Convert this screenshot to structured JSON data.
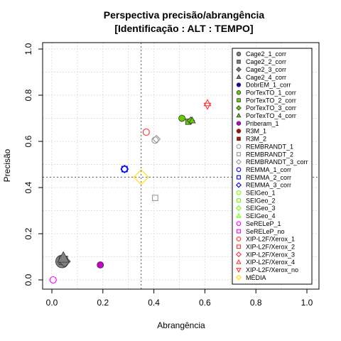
{
  "chart_data": {
    "type": "scatter",
    "title_line1": "Perspectiva precisão/abrangência",
    "title_line2": "[Identificação : ALT : TEMPO]",
    "xlabel": "Abrangência",
    "ylabel": "Precisão",
    "xlim": [
      0,
      1
    ],
    "ylim": [
      0,
      1
    ],
    "xticks": [
      "0.0",
      "0.2",
      "0.4",
      "0.6",
      "0.8",
      "1.0"
    ],
    "yticks": [
      "0.0",
      "0.2",
      "0.4",
      "0.6",
      "0.8",
      "1.0"
    ],
    "grid": true,
    "legend_position": "top-right",
    "reference_lines": {
      "x": 0.35,
      "y": 0.445
    },
    "series": [
      {
        "name": "Cage2_1_corr",
        "color": "#808080",
        "shape": "circle",
        "filled": true,
        "points": [
          [
            0.04,
            0.08
          ]
        ]
      },
      {
        "name": "Cage2_2_corr",
        "color": "#808080",
        "shape": "square",
        "filled": true,
        "points": [
          [
            0.045,
            0.085
          ]
        ]
      },
      {
        "name": "Cage2_3_corr",
        "color": "#808080",
        "shape": "diamond",
        "filled": true,
        "points": [
          [
            0.05,
            0.08
          ]
        ]
      },
      {
        "name": "Cage2_4_corr",
        "color": "#808080",
        "shape": "triangle",
        "filled": true,
        "points": [
          [
            0.045,
            0.095
          ]
        ]
      },
      {
        "name": "DobrEM_1_corr",
        "color": "#0000cc",
        "shape": "circle",
        "filled": true,
        "points": []
      },
      {
        "name": "PorTexTO_1_corr",
        "color": "#66cc00",
        "shape": "circle",
        "filled": true,
        "points": [
          [
            0.51,
            0.7
          ]
        ]
      },
      {
        "name": "PorTexTO_2_corr",
        "color": "#66cc00",
        "shape": "square",
        "filled": true,
        "points": [
          [
            0.535,
            0.685
          ]
        ]
      },
      {
        "name": "PorTexTO_3_corr",
        "color": "#66cc00",
        "shape": "diamond",
        "filled": true,
        "points": [
          [
            0.545,
            0.69
          ]
        ]
      },
      {
        "name": "PorTexTO_4_corr",
        "color": "#66cc00",
        "shape": "triangle",
        "filled": true,
        "points": [
          [
            0.55,
            0.69
          ]
        ]
      },
      {
        "name": "Priberam_1",
        "color": "#cc00cc",
        "shape": "circle",
        "filled": true,
        "points": [
          [
            0.19,
            0.065
          ]
        ]
      },
      {
        "name": "R3M_1",
        "color": "#cc0000",
        "shape": "circle",
        "filled": true,
        "points": []
      },
      {
        "name": "R3M_2",
        "color": "#cc0000",
        "shape": "square",
        "filled": true,
        "points": []
      },
      {
        "name": "REMBRANDT_1",
        "color": "#999999",
        "shape": "circle",
        "filled": false,
        "points": [
          [
            0.405,
            0.605
          ]
        ]
      },
      {
        "name": "REMBRANDT_2",
        "color": "#999999",
        "shape": "square",
        "filled": false,
        "points": [
          [
            0.405,
            0.355
          ]
        ]
      },
      {
        "name": "REMBRANDT_3_corr",
        "color": "#999999",
        "shape": "diamond",
        "filled": false,
        "points": [
          [
            0.41,
            0.61
          ]
        ]
      },
      {
        "name": "REMMA_1_corr",
        "color": "#0000ff",
        "shape": "circle",
        "filled": false,
        "points": [
          [
            0.285,
            0.48
          ]
        ]
      },
      {
        "name": "REMMA_2_corr",
        "color": "#0000ff",
        "shape": "square",
        "filled": false,
        "points": [
          [
            0.285,
            0.48
          ]
        ]
      },
      {
        "name": "REMMA_3_corr",
        "color": "#0000ff",
        "shape": "diamond",
        "filled": false,
        "points": [
          [
            0.285,
            0.48
          ]
        ]
      },
      {
        "name": "SEIGeo_1",
        "color": "#66ff00",
        "shape": "circle",
        "filled": false,
        "points": []
      },
      {
        "name": "SEIGeo_2",
        "color": "#66ff00",
        "shape": "square",
        "filled": false,
        "points": []
      },
      {
        "name": "SEIGeo_3",
        "color": "#66ff00",
        "shape": "diamond",
        "filled": false,
        "points": []
      },
      {
        "name": "SEIGeo_4",
        "color": "#66ff00",
        "shape": "triangle",
        "filled": false,
        "points": []
      },
      {
        "name": "SeRELeP_1",
        "color": "#ff00ff",
        "shape": "circle",
        "filled": false,
        "points": [
          [
            0.005,
            0.0
          ]
        ]
      },
      {
        "name": "SeRELeP_no",
        "color": "#ff00ff",
        "shape": "square",
        "filled": false,
        "points": []
      },
      {
        "name": "XIP-L2F/Xerox_1",
        "color": "#ff3333",
        "shape": "circle",
        "filled": false,
        "points": [
          [
            0.37,
            0.64
          ]
        ]
      },
      {
        "name": "XIP-L2F/Xerox_2",
        "color": "#ff3333",
        "shape": "square",
        "filled": false,
        "points": []
      },
      {
        "name": "XIP-L2F/Xerox_3",
        "color": "#ff3333",
        "shape": "diamond",
        "filled": false,
        "points": []
      },
      {
        "name": "XIP-L2F/Xerox_4",
        "color": "#ff3333",
        "shape": "triangle",
        "filled": false,
        "points": [
          [
            0.61,
            0.765
          ]
        ]
      },
      {
        "name": "XIP-L2F/Xerox_no",
        "color": "#ff3333",
        "shape": "triangle-down",
        "filled": false,
        "points": [
          [
            0.61,
            0.755
          ]
        ]
      },
      {
        "name": "MÉDIA",
        "color": "#ffdd00",
        "shape": "diamond",
        "filled": false,
        "points": [
          [
            0.35,
            0.445
          ]
        ]
      }
    ]
  }
}
